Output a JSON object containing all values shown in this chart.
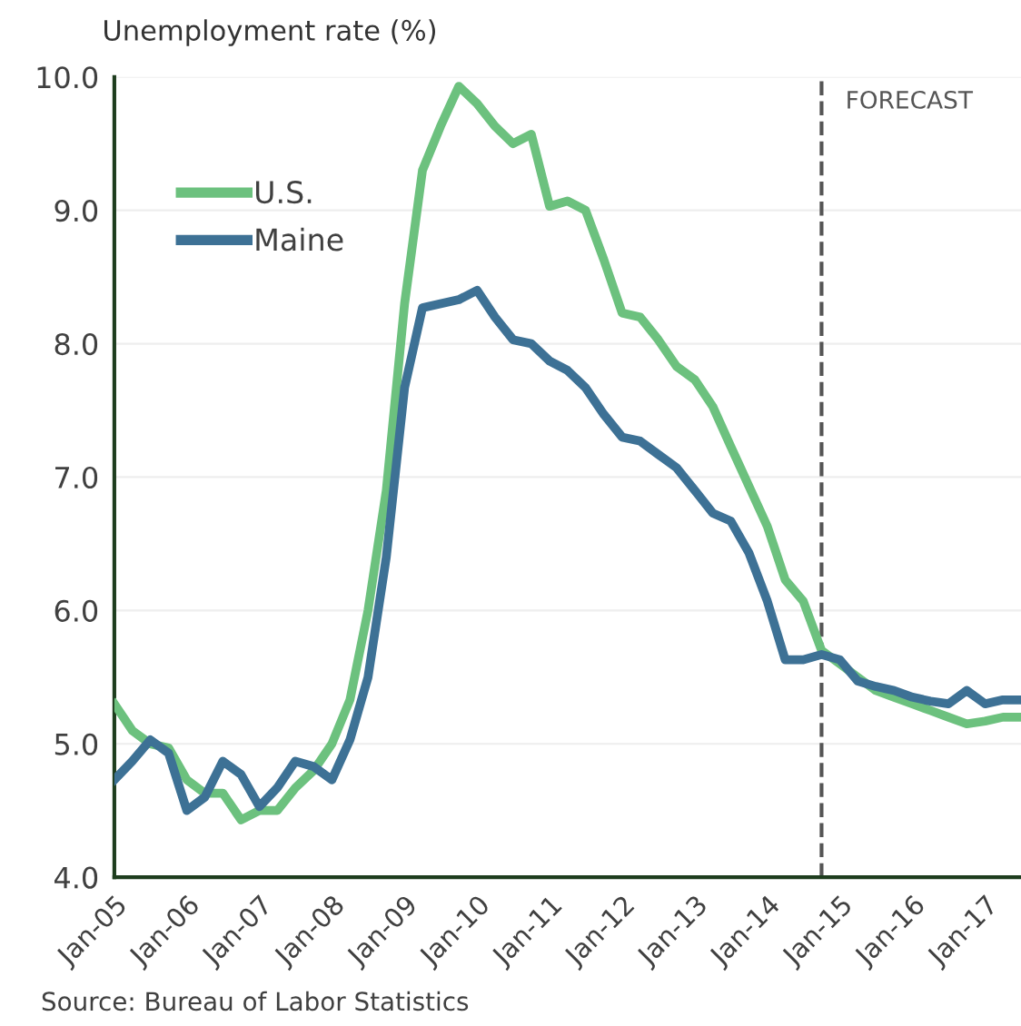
{
  "chart_data": {
    "type": "line",
    "ylabel": "Unemployment rate (%)",
    "x": [
      "2005-01",
      "2005-04",
      "2005-07",
      "2005-10",
      "2006-01",
      "2006-04",
      "2006-07",
      "2006-10",
      "2007-01",
      "2007-04",
      "2007-07",
      "2007-10",
      "2008-01",
      "2008-04",
      "2008-07",
      "2008-10",
      "2009-01",
      "2009-04",
      "2009-07",
      "2009-10",
      "2010-01",
      "2010-04",
      "2010-07",
      "2010-10",
      "2011-01",
      "2011-04",
      "2011-07",
      "2011-10",
      "2012-01",
      "2012-04",
      "2012-07",
      "2012-10",
      "2013-01",
      "2013-04",
      "2013-07",
      "2013-10",
      "2014-01",
      "2014-04",
      "2014-07",
      "2014-10",
      "2015-01",
      "2015-04",
      "2015-07",
      "2015-10",
      "2016-01",
      "2016-04",
      "2016-07",
      "2016-10",
      "2017-01",
      "2017-04",
      "2017-07"
    ],
    "series": [
      {
        "name": "U.S.",
        "color": "#6cc17e",
        "values": [
          5.3,
          5.1,
          5.0,
          4.97,
          4.73,
          4.63,
          4.63,
          4.43,
          4.5,
          4.5,
          4.67,
          4.8,
          5.0,
          5.33,
          6.0,
          6.9,
          8.3,
          9.3,
          9.63,
          9.93,
          9.8,
          9.63,
          9.5,
          9.57,
          9.03,
          9.07,
          9.0,
          8.63,
          8.23,
          8.2,
          8.03,
          7.83,
          7.73,
          7.53,
          7.23,
          6.93,
          6.63,
          6.23,
          6.07,
          5.7,
          5.6,
          5.5,
          5.4,
          5.35,
          5.3,
          5.25,
          5.2,
          5.15,
          5.17,
          5.2,
          5.2
        ]
      },
      {
        "name": "Maine",
        "color": "#3d7195",
        "values": [
          4.73,
          4.87,
          5.03,
          4.93,
          4.5,
          4.6,
          4.87,
          4.77,
          4.53,
          4.67,
          4.87,
          4.83,
          4.73,
          5.03,
          5.5,
          6.4,
          7.67,
          8.27,
          8.3,
          8.33,
          8.4,
          8.2,
          8.03,
          8.0,
          7.87,
          7.8,
          7.67,
          7.47,
          7.3,
          7.27,
          7.17,
          7.07,
          6.9,
          6.73,
          6.67,
          6.43,
          6.07,
          5.63,
          5.63,
          5.67,
          5.63,
          5.47,
          5.43,
          5.4,
          5.35,
          5.32,
          5.3,
          5.4,
          5.3,
          5.33,
          5.33
        ]
      }
    ],
    "xlim": [
      "2005-01",
      "2017-07"
    ],
    "xticks": [
      {
        "value": "2005-01",
        "label": "Jan-05"
      },
      {
        "value": "2006-01",
        "label": "Jan-06"
      },
      {
        "value": "2007-01",
        "label": "Jan-07"
      },
      {
        "value": "2008-01",
        "label": "Jan-08"
      },
      {
        "value": "2009-01",
        "label": "Jan-09"
      },
      {
        "value": "2010-01",
        "label": "Jan-10"
      },
      {
        "value": "2011-01",
        "label": "Jan-11"
      },
      {
        "value": "2012-01",
        "label": "Jan-12"
      },
      {
        "value": "2013-01",
        "label": "Jan-13"
      },
      {
        "value": "2014-01",
        "label": "Jan-14"
      },
      {
        "value": "2015-01",
        "label": "Jan-15"
      },
      {
        "value": "2016-01",
        "label": "Jan-16"
      },
      {
        "value": "2017-01",
        "label": "Jan-17"
      }
    ],
    "ylim": [
      4,
      10
    ],
    "yticks": [
      {
        "value": 4,
        "label": "4.0"
      },
      {
        "value": 5,
        "label": "5.0"
      },
      {
        "value": 6,
        "label": "6.0"
      },
      {
        "value": 7,
        "label": "7.0"
      },
      {
        "value": 8,
        "label": "8.0"
      },
      {
        "value": 9,
        "label": "9.0"
      },
      {
        "value": 10,
        "label": "10.0"
      }
    ],
    "ref_lines": [
      {
        "axis": "x",
        "value": "2014-10",
        "label": "FORECAST",
        "color": "#555555",
        "line_style": "dashed"
      }
    ],
    "grid": "y",
    "legend": "top left",
    "line_style": "solid",
    "annotations": [
      "Source: Bureau of Labor Statistics"
    ]
  }
}
